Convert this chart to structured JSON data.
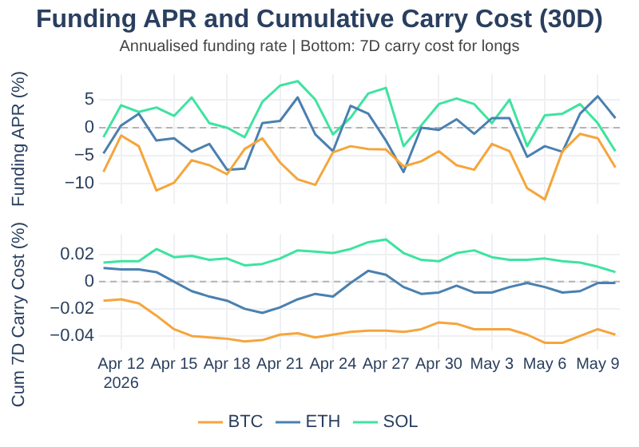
{
  "chart_data": [
    {
      "type": "line",
      "title": "Funding APR and Cumulative Carry Cost (30D)",
      "subtitle": "Annualised funding rate | Bottom: 7D carry cost for longs",
      "ylabel": "Funding APR (%)",
      "x": [
        "2026-04-11",
        "2026-04-12",
        "2026-04-13",
        "2026-04-14",
        "2026-04-15",
        "2026-04-16",
        "2026-04-17",
        "2026-04-18",
        "2026-04-19",
        "2026-04-20",
        "2026-04-21",
        "2026-04-22",
        "2026-04-23",
        "2026-04-24",
        "2026-04-25",
        "2026-04-26",
        "2026-04-27",
        "2026-04-28",
        "2026-04-29",
        "2026-04-30",
        "2026-05-01",
        "2026-05-02",
        "2026-05-03",
        "2026-05-04",
        "2026-05-05",
        "2026-05-06",
        "2026-05-07",
        "2026-05-08",
        "2026-05-09",
        "2026-05-10"
      ],
      "series": [
        {
          "color": "#f5a53c",
          "values": [
            -7.9,
            -1.4,
            -3.3,
            -11.2,
            -9.8,
            -5.8,
            -6.7,
            -8.3,
            -3.8,
            -1.9,
            -6.2,
            -9.2,
            -10.2,
            -4.4,
            -3.3,
            -3.8,
            -3.9,
            -6.9,
            -6,
            -4.2,
            -6.7,
            -7.5,
            -2.9,
            -4.2,
            -10.8,
            -12.8,
            -4.2,
            -1.1,
            -1.9,
            -7.1
          ]
        },
        {
          "color": "#4a80b0",
          "values": [
            -4.6,
            0.4,
            2.5,
            -2.3,
            -1.9,
            -4.3,
            -2.9,
            -7.5,
            -7.3,
            0.8,
            1.2,
            5.4,
            -1.2,
            -4.2,
            3.9,
            2.5,
            -2.3,
            -7.9,
            0,
            -0.4,
            1.5,
            -1.1,
            1.7,
            1.7,
            -5.2,
            -3.3,
            -4.3,
            2.5,
            5.6,
            1.7
          ]
        },
        {
          "color": "#3ee3a0",
          "values": [
            -1.7,
            4,
            2.8,
            3.6,
            2.1,
            5.4,
            0.8,
            0,
            -1.7,
            4.6,
            7.5,
            8.3,
            5,
            -1.2,
            1.8,
            6.1,
            7.1,
            -3.3,
            0.4,
            4.2,
            5.2,
            4.2,
            0.8,
            5,
            -3.3,
            2.2,
            2.5,
            4.2,
            0.8,
            -4.2
          ]
        }
      ],
      "xlim": [
        "2026-04-10T18:00",
        "2026-05-10T06:00"
      ],
      "xticks": [
        {
          "value": "2026-04-12",
          "label": null
        },
        {
          "value": "2026-04-15",
          "label": null
        },
        {
          "value": "2026-04-18",
          "label": null
        },
        {
          "value": "2026-04-21",
          "label": null
        },
        {
          "value": "2026-04-24",
          "label": null
        },
        {
          "value": "2026-04-27",
          "label": null
        },
        {
          "value": "2026-04-30",
          "label": null
        },
        {
          "value": "2026-05-03",
          "label": null
        },
        {
          "value": "2026-05-06",
          "label": null
        },
        {
          "value": "2026-05-09",
          "label": null
        }
      ],
      "ylim": [
        -13.5,
        9.5
      ],
      "yticks": [
        {
          "value": -10,
          "label": "−10"
        },
        {
          "value": -5,
          "label": "−5"
        },
        0,
        5
      ],
      "tick_labels": "y",
      "grid": true,
      "legend": false,
      "marker": "none",
      "line_style": "solid",
      "ref_lines": [
        {
          "axis": "y",
          "value": 0,
          "color": "#b4b4b4",
          "line_style": "dashed"
        }
      ]
    },
    {
      "type": "line",
      "ylabel": "Cum 7D Carry Cost (%)",
      "x": [
        "2026-04-11",
        "2026-04-12",
        "2026-04-13",
        "2026-04-14",
        "2026-04-15",
        "2026-04-16",
        "2026-04-17",
        "2026-04-18",
        "2026-04-19",
        "2026-04-20",
        "2026-04-21",
        "2026-04-22",
        "2026-04-23",
        "2026-04-24",
        "2026-04-25",
        "2026-04-26",
        "2026-04-27",
        "2026-04-28",
        "2026-04-29",
        "2026-04-30",
        "2026-05-01",
        "2026-05-02",
        "2026-05-03",
        "2026-05-04",
        "2026-05-05",
        "2026-05-06",
        "2026-05-07",
        "2026-05-08",
        "2026-05-09",
        "2026-05-10"
      ],
      "series": [
        {
          "name": "BTC",
          "color": "#f5a53c",
          "values": [
            -0.014,
            -0.013,
            -0.016,
            -0.025,
            -0.035,
            -0.04,
            -0.041,
            -0.042,
            -0.044,
            -0.043,
            -0.039,
            -0.038,
            -0.041,
            -0.039,
            -0.037,
            -0.036,
            -0.036,
            -0.037,
            -0.035,
            -0.03,
            -0.031,
            -0.035,
            -0.035,
            -0.035,
            -0.039,
            -0.045,
            -0.045,
            -0.04,
            -0.035,
            -0.039
          ]
        },
        {
          "name": "ETH",
          "color": "#4a80b0",
          "values": [
            0.01,
            0.009,
            0.009,
            0.007,
            0,
            -0.007,
            -0.011,
            -0.014,
            -0.02,
            -0.023,
            -0.019,
            -0.013,
            -0.009,
            -0.011,
            -0.001,
            0.008,
            0.005,
            -0.004,
            -0.009,
            -0.008,
            -0.003,
            -0.008,
            -0.008,
            -0.004,
            -0.001,
            -0.004,
            -0.008,
            -0.007,
            -0.001,
            -0.001
          ]
        },
        {
          "name": "SOL",
          "color": "#3ee3a0",
          "values": [
            0.014,
            0.015,
            0.015,
            0.024,
            0.018,
            0.019,
            0.016,
            0.017,
            0.012,
            0.013,
            0.017,
            0.023,
            0.022,
            0.021,
            0.024,
            0.029,
            0.031,
            0.021,
            0.016,
            0.015,
            0.021,
            0.023,
            0.018,
            0.016,
            0.016,
            0.017,
            0.015,
            0.014,
            0.011,
            0.007
          ]
        }
      ],
      "xlim": [
        "2026-04-10T18:00",
        "2026-05-10T06:00"
      ],
      "xticks": [
        {
          "value": "2026-04-12",
          "label": "Apr 12\n2026"
        },
        {
          "value": "2026-04-15",
          "label": "Apr 15"
        },
        {
          "value": "2026-04-18",
          "label": "Apr 18"
        },
        {
          "value": "2026-04-21",
          "label": "Apr 21"
        },
        {
          "value": "2026-04-24",
          "label": "Apr 24"
        },
        {
          "value": "2026-04-27",
          "label": "Apr 27"
        },
        {
          "value": "2026-04-30",
          "label": "Apr 30"
        },
        {
          "value": "2026-05-03",
          "label": "May 3"
        },
        {
          "value": "2026-05-06",
          "label": "May 6"
        },
        {
          "value": "2026-05-09",
          "label": "May 9"
        }
      ],
      "ylim": [
        -0.05,
        0.035
      ],
      "yticks": [
        {
          "value": -0.04,
          "label": "−0.04"
        },
        {
          "value": -0.02,
          "label": "−0.02"
        },
        0,
        0.02
      ],
      "grid": true,
      "legend": "bottom",
      "marker": "none",
      "line_style": "solid",
      "ref_lines": [
        {
          "axis": "y",
          "value": 0,
          "color": "#b4b4b4",
          "line_style": "dashed"
        }
      ]
    }
  ]
}
